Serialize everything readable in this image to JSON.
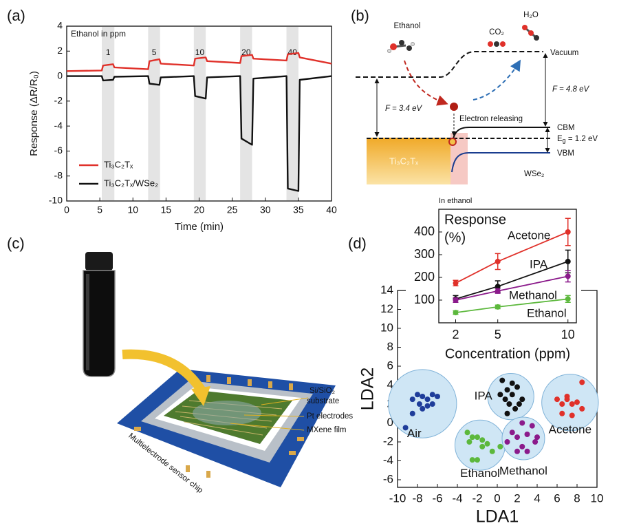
{
  "panel_labels": [
    "(a)",
    "(b)",
    "(c)",
    "(d)"
  ],
  "chart_data": [
    {
      "type": "line",
      "xlabel": "Time (min)",
      "ylabel": "Response (ΔR/R₀)",
      "annotation": "Ethanol in ppm",
      "pulse_labels": [
        "1",
        "5",
        "10",
        "20",
        "40"
      ],
      "shaded_x": [
        [
          5.3,
          7.2
        ],
        [
          12.3,
          14.1
        ],
        [
          19.2,
          21
        ],
        [
          26.2,
          28
        ],
        [
          33.2,
          35
        ]
      ],
      "shaded_color": "#e4e4e4",
      "x": [
        0,
        5.3,
        5.5,
        7,
        7.2,
        12.3,
        12.5,
        14,
        14.2,
        19.2,
        19.4,
        21,
        21.2,
        26.2,
        26.4,
        28,
        28.2,
        33.2,
        33.4,
        35,
        35.2,
        40
      ],
      "series": [
        {
          "name": "Ti₃C₂Tₓ",
          "color": "#e0312a",
          "values": [
            0.4,
            0.45,
            0.85,
            0.95,
            0.7,
            0.55,
            1.2,
            1.35,
            1.0,
            0.85,
            1.4,
            1.5,
            1.2,
            1.05,
            1.6,
            1.7,
            1.4,
            1.25,
            1.75,
            1.85,
            1.5,
            1.0
          ]
        },
        {
          "name": "Ti₃C₂Tₓ/WSe₂",
          "color": "#111111",
          "values": [
            0,
            0,
            -0.35,
            -0.3,
            -0.05,
            0,
            -0.6,
            -0.7,
            -0.1,
            0,
            -1.6,
            -1.8,
            -0.1,
            0,
            -5,
            -5.5,
            -0.2,
            0,
            -9,
            -9.2,
            -0.3,
            0
          ]
        }
      ],
      "xlim": [
        0,
        40
      ],
      "xticks": [
        0,
        5,
        10,
        15,
        20,
        25,
        30,
        35,
        40
      ],
      "ylim": [
        -10,
        4
      ],
      "yticks": [
        -10,
        -8,
        -6,
        -4,
        -2,
        0,
        2,
        4
      ],
      "legend": "lower left"
    },
    {
      "type": "scatter",
      "xlabel": "LDA1",
      "ylabel": "LDA2",
      "cluster_fill": "#cfe6f5",
      "series": [
        {
          "name": "Air",
          "color": "#1f3d9a",
          "x": [
            -8.5,
            -8,
            -7.5,
            -7,
            -6.5,
            -6,
            -7.8,
            -7,
            -8.5,
            -6.5,
            -7.5,
            -9.2
          ],
          "values": [
            2.5,
            3,
            2.8,
            2.5,
            3,
            2.8,
            2,
            1.8,
            1,
            2,
            1.5,
            -0.5
          ]
        },
        {
          "name": "IPA",
          "color": "#111111",
          "x": [
            0.5,
            1,
            1.5,
            0.8,
            1.2,
            2,
            1.8,
            2.5,
            1,
            0.3,
            1.5,
            2.2
          ],
          "values": [
            4.5,
            3.5,
            3,
            2.5,
            2,
            3.8,
            1.5,
            2.5,
            1,
            3,
            4.2,
            2
          ]
        },
        {
          "name": "Acetone",
          "color": "#e0312a",
          "x": [
            8.5,
            6,
            6.5,
            7,
            7.5,
            8,
            6.5,
            7.5,
            8.5,
            7
          ],
          "values": [
            4.3,
            2.5,
            2,
            2.8,
            2,
            2.2,
            1,
            0.8,
            1.5,
            2.5
          ]
        },
        {
          "name": "Ethanol",
          "color": "#5cb83c",
          "x": [
            -3,
            -2.5,
            -2,
            -1.5,
            -2.8,
            -1,
            0.3,
            -0.5,
            -1.5,
            -2.5,
            -2
          ],
          "values": [
            -1,
            -1.5,
            -1.5,
            -1.8,
            -2,
            -2.2,
            -2.5,
            -3,
            -2.5,
            -3.9,
            -3.9
          ]
        },
        {
          "name": "Methanol",
          "color": "#8b1a8b",
          "x": [
            2.5,
            3.5,
            1.5,
            2,
            3,
            2.5,
            3,
            2,
            3.8,
            1,
            4
          ],
          "values": [
            0,
            -0.3,
            -1,
            -1.5,
            -1.2,
            -2.5,
            -3,
            -3,
            -2,
            -2,
            -1.5
          ]
        }
      ],
      "xlim": [
        -10,
        10
      ],
      "xticks": [
        -10,
        -8,
        -6,
        -4,
        -2,
        0,
        2,
        4,
        6,
        8,
        10
      ],
      "ylim": [
        -6.8,
        14
      ],
      "yticks": [
        -6,
        -4,
        -2,
        0,
        2,
        4,
        6,
        8,
        10,
        12,
        14
      ]
    },
    {
      "type": "line",
      "inset": true,
      "ylabel_lines": [
        "Response",
        "(%)"
      ],
      "xlabel": "Concentration (ppm)",
      "x": [
        2,
        5,
        10
      ],
      "series": [
        {
          "name": "Acetone",
          "color": "#e0312a",
          "values": [
            175,
            270,
            400
          ],
          "errors": [
            12,
            35,
            60
          ]
        },
        {
          "name": "IPA",
          "color": "#111111",
          "values": [
            105,
            160,
            270
          ],
          "errors": [
            15,
            25,
            50
          ]
        },
        {
          "name": "Methanol",
          "color": "#8b1a8b",
          "values": [
            100,
            140,
            205
          ],
          "errors": [
            10,
            10,
            25
          ]
        },
        {
          "name": "Ethanol",
          "color": "#5cb83c",
          "values": [
            45,
            70,
            105
          ],
          "errors": [
            8,
            8,
            15
          ]
        }
      ],
      "xlim": [
        0.8,
        10.6
      ],
      "xticks": [
        2,
        5,
        10
      ],
      "ylim": [
        0,
        500
      ],
      "yticks": [
        100,
        200,
        300,
        400
      ]
    }
  ],
  "diagram": {
    "ethanol": "Ethanol",
    "co2": "CO₂",
    "h2o": "H₂O",
    "vacuum": "Vacuum",
    "f_left": "F = 3.4 eV",
    "f_right": "F = 4.8 eV",
    "electron": "Electron releasing",
    "cbm": "CBM",
    "eg": [
      "E",
      "g",
      " = 1.2 eV"
    ],
    "vbm": "VBM",
    "mxene": "Ti₃C₂Tₓ",
    "wse2": "WSe₂",
    "in_ethanol": "In ethanol"
  },
  "illustration": {
    "substrate_1": "Si/SiO₂",
    "substrate_2": "substrate",
    "pt": "Pt electrodes",
    "mxene": "MXene film",
    "chip": "Multielectrode sensor chip"
  }
}
